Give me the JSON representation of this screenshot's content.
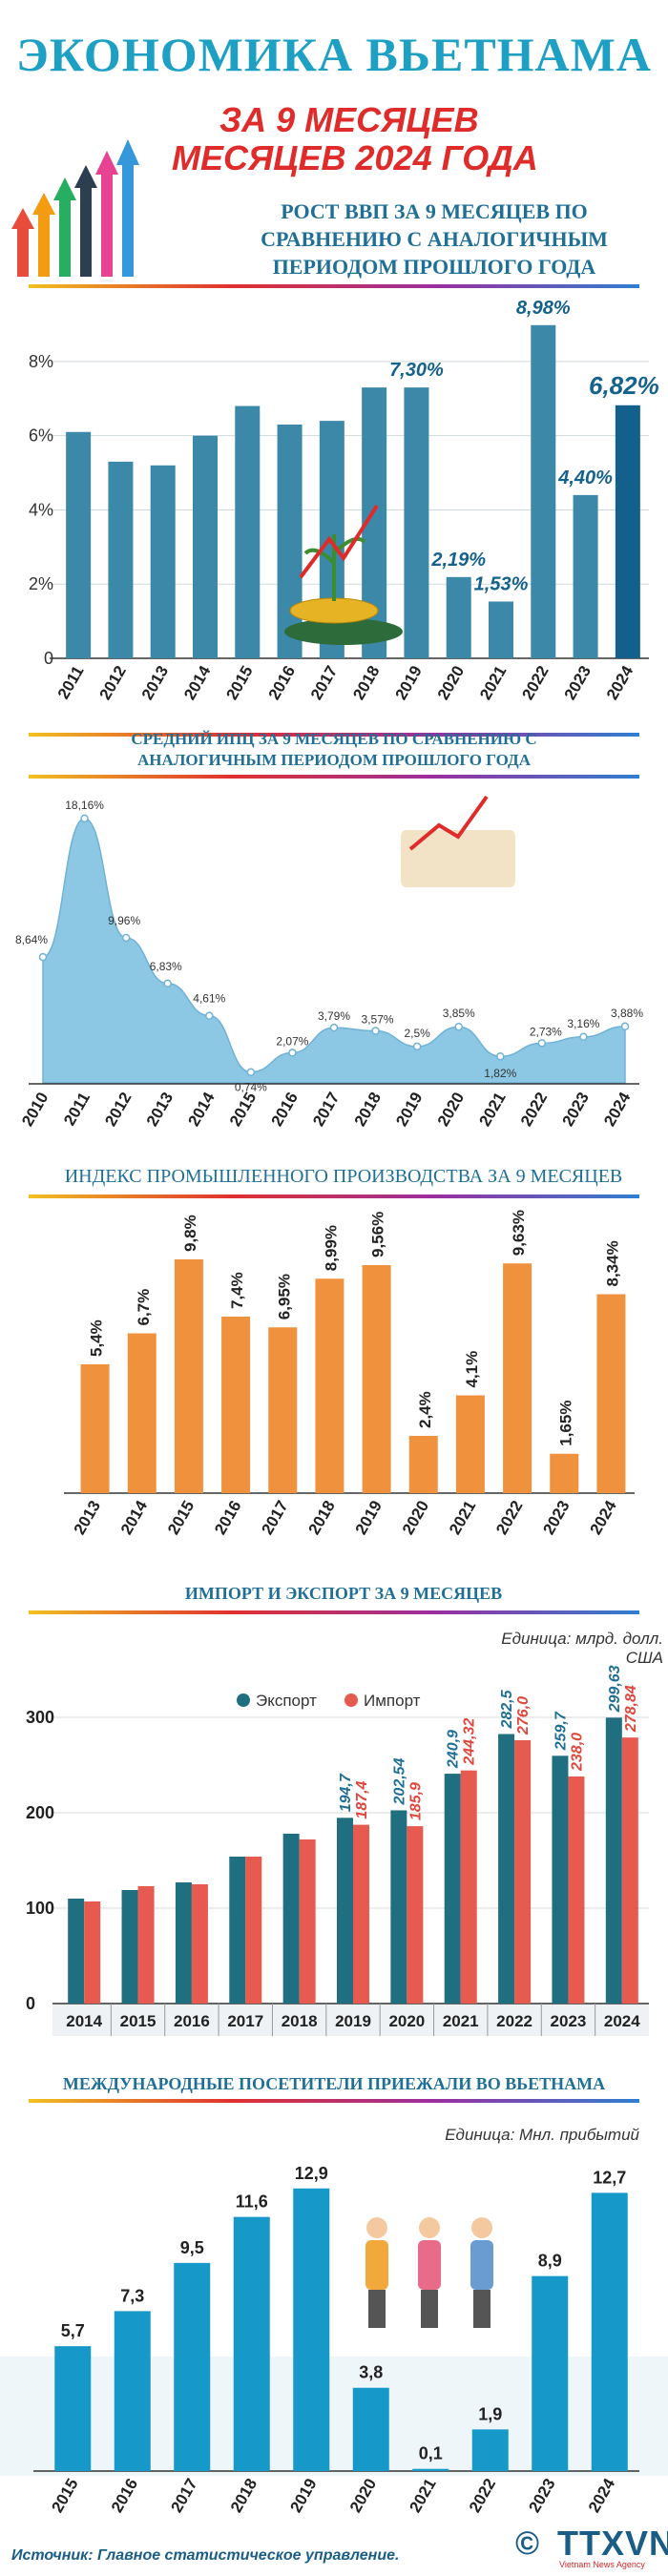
{
  "header": {
    "title": "ЭКОНОМИКА ВЬЕТНАМА",
    "subtitle_line1": "ЗА 9 МЕСЯЦЕВ",
    "subtitle_line2": "МЕСЯЦЕВ 2024 ГОДА"
  },
  "colors": {
    "gdp_bar": "#3c88a8",
    "gdp_bar_last": "#13608d",
    "cpi_area": "#8cc7e4",
    "industry_bar": "#f0923d",
    "export_bar": "#1f6f80",
    "import_bar": "#e65a50",
    "tourism_bar": "#1699c9",
    "title_blue": "#1e9fc4",
    "subtitle_red": "#e02b2b"
  },
  "chart_data": [
    {
      "type": "bar",
      "title": "РОСТ ВВП ЗА 9 МЕСЯЦЕВ ПО СРАВНЕНИЮ С АНАЛОГИЧНЫМ ПЕРИОДОМ ПРОШЛОГО ГОДА",
      "title_lines": [
        "РОСТ ВВП ЗА 9 МЕСЯЦЕВ ПО",
        "СРАВНЕНИЮ С АНАЛОГИЧНЫМ",
        "ПЕРИОДОМ ПРОШЛОГО ГОДА"
      ],
      "categories": [
        "2011",
        "2012",
        "2013",
        "2014",
        "2015",
        "2016",
        "2017",
        "2018",
        "2019",
        "2020",
        "2021",
        "2022",
        "2023",
        "2024"
      ],
      "values": [
        6.1,
        5.3,
        5.2,
        6.0,
        6.8,
        6.3,
        6.4,
        7.3,
        7.3,
        2.19,
        1.53,
        8.98,
        4.4,
        6.82
      ],
      "labels": {
        "2019": "7,30%",
        "2020": "2,19%",
        "2021": "1,53%",
        "2022": "8,98%",
        "2023": "4,40%",
        "2024": "6,82%"
      },
      "yticks": [
        "0",
        "2%",
        "4%",
        "6%",
        "8%"
      ],
      "ylim": [
        0,
        9
      ]
    },
    {
      "type": "area",
      "title": "СРЕДНИЙ ИПЦ ЗА 9 МЕСЯЦЕВ ПО СРАВНЕНИЮ С АНАЛОГИЧНЫМ ПЕРИОДОМ ПРОШЛОГО ГОДА",
      "title_lines": [
        "СРЕДНИЙ ИПЦ ЗА 9 МЕСЯЦЕВ ПО СРАВНЕНИЮ С",
        "АНАЛОГИЧНЫМ ПЕРИОДОМ ПРОШЛОГО ГОДА"
      ],
      "categories": [
        "2010",
        "2011",
        "2012",
        "2013",
        "2014",
        "2015",
        "2016",
        "2017",
        "2018",
        "2019",
        "2020",
        "2021",
        "2022",
        "2023",
        "2024"
      ],
      "values": [
        8.64,
        18.16,
        9.96,
        6.83,
        4.61,
        0.74,
        2.07,
        3.79,
        3.57,
        2.5,
        3.85,
        1.82,
        2.73,
        3.16,
        3.88
      ],
      "labels": [
        "8,64%",
        "18,16%",
        "9,96%",
        "6,83%",
        "4,61%",
        "0,74%",
        "2,07%",
        "3,79%",
        "3,57%",
        "2,5%",
        "3,85%",
        "1,82%",
        "2,73%",
        "3,16%",
        "3,88%"
      ],
      "ylim": [
        0,
        19
      ]
    },
    {
      "type": "bar",
      "title": "ИНДЕКС ПРОМЫШЛЕННОГО ПРОИЗВОДСТВА ЗА 9 МЕСЯЦЕВ",
      "categories": [
        "2013",
        "2014",
        "2015",
        "2016",
        "2017",
        "2018",
        "2019",
        "2020",
        "2021",
        "2022",
        "2023",
        "2024"
      ],
      "values": [
        5.4,
        6.7,
        9.8,
        7.4,
        6.95,
        8.99,
        9.56,
        2.4,
        4.1,
        9.63,
        1.65,
        8.34
      ],
      "labels": [
        "5,4%",
        "6,7%",
        "9,8%",
        "7,4%",
        "6,95%",
        "8,99%",
        "9,56%",
        "2,4%",
        "4,1%",
        "9,63%",
        "1,65%",
        "8,34%"
      ],
      "ylim": [
        0,
        10
      ]
    },
    {
      "type": "bar",
      "title": "ИМПОРТ И ЭКСПОРТ ЗА 9 МЕСЯЦЕВ",
      "unit": "Единица: млрд. долл. США",
      "categories": [
        "2014",
        "2015",
        "2016",
        "2017",
        "2018",
        "2019",
        "2020",
        "2021",
        "2022",
        "2023",
        "2024"
      ],
      "series": [
        {
          "name": "Экспорт",
          "values": [
            110,
            119,
            127,
            154,
            178,
            194.7,
            202.54,
            240.9,
            282.5,
            259.7,
            299.63
          ],
          "labels": [
            "",
            "",
            "",
            "",
            "",
            "194,7",
            "202,54",
            "240,9",
            "282,5",
            "259,7",
            "299,63"
          ]
        },
        {
          "name": "Импорт",
          "values": [
            107,
            123,
            125,
            154,
            172,
            187.4,
            185.9,
            244.32,
            276.0,
            238.0,
            278.84
          ],
          "labels": [
            "",
            "",
            "",
            "",
            "",
            "187,4",
            "185,9",
            "244,32",
            "276,0",
            "238,0",
            "278,84"
          ]
        }
      ],
      "yticks": [
        "0",
        "100",
        "200",
        "300"
      ],
      "ylim": [
        0,
        320
      ]
    },
    {
      "type": "bar",
      "title": "МЕЖДУНАРОДНЫЕ ПОСЕТИТЕЛИ ПРИЕЖАЛИ ВО ВЬЕТНАМА",
      "unit": "Единица: Мнл. прибытий",
      "categories": [
        "2015",
        "2016",
        "2017",
        "2018",
        "2019",
        "2020",
        "2021",
        "2022",
        "2023",
        "2024"
      ],
      "values": [
        5.7,
        7.3,
        9.5,
        11.6,
        12.9,
        3.8,
        0.1,
        1.9,
        8.9,
        12.7
      ],
      "labels": [
        "5,7",
        "7,3",
        "9,5",
        "11,6",
        "12,9",
        "3,8",
        "0,1",
        "1,9",
        "8,9",
        "12,7"
      ],
      "ylim": [
        0,
        13.5
      ]
    }
  ],
  "footer": {
    "source": "Источник: Главное статистическое управление.",
    "logo_text": "TTXVN",
    "logo_sub": "Vietnam News Agency",
    "copyright": "©"
  }
}
